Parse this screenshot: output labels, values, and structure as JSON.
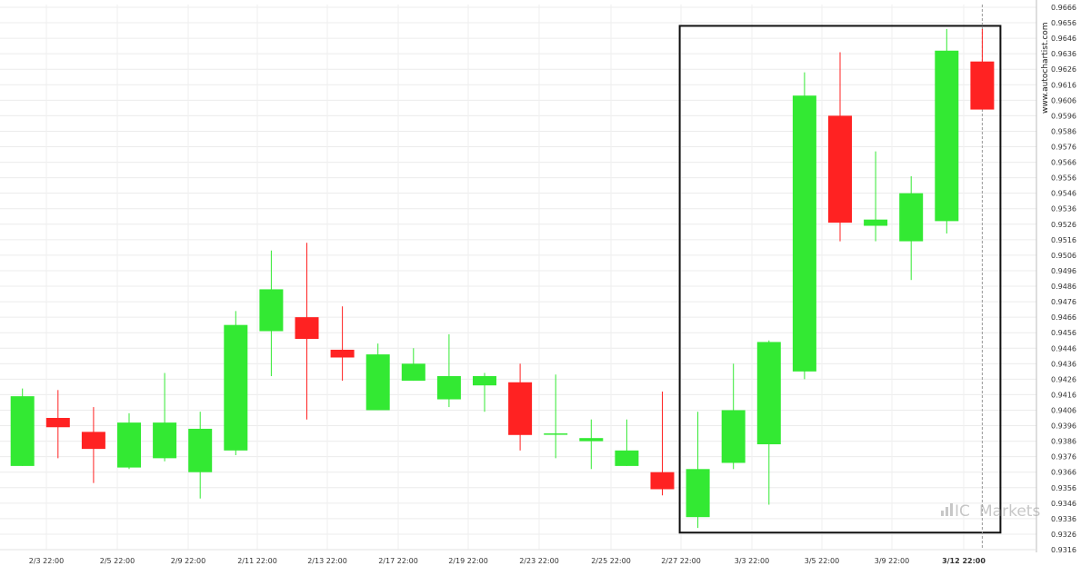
{
  "chart_data": {
    "type": "candlestick",
    "x_labels": [
      "2/3 22:00",
      "2/5 22:00",
      "2/9 22:00",
      "2/11 22:00",
      "2/13 22:00",
      "2/17 22:00",
      "2/19 22:00",
      "2/23 22:00",
      "2/25 22:00",
      "2/27 22:00",
      "3/3 22:00",
      "3/5 22:00",
      "3/9 22:00",
      "3/12 22:00"
    ],
    "highlighted_x_label": "3/12 22:00",
    "y_ticks": [
      "0.9666",
      "0.9656",
      "0.9646",
      "0.9636",
      "0.9626",
      "0.9616",
      "0.9606",
      "0.9596",
      "0.9586",
      "0.9576",
      "0.9566",
      "0.9556",
      "0.9546",
      "0.9536",
      "0.9526",
      "0.9516",
      "0.9506",
      "0.9496",
      "0.9486",
      "0.9476",
      "0.9466",
      "0.9456",
      "0.9446",
      "0.9436",
      "0.9426",
      "0.9416",
      "0.9406",
      "0.9396",
      "0.9386",
      "0.9376",
      "0.9366",
      "0.9356",
      "0.9346",
      "0.9336",
      "0.9326",
      "0.9316"
    ],
    "ylim": [
      0.9316,
      0.9666
    ],
    "grid": true,
    "candles": [
      {
        "o": 0.937,
        "h": 0.942,
        "l": 0.937,
        "c": 0.9415
      },
      {
        "o": 0.9401,
        "h": 0.9419,
        "l": 0.9375,
        "c": 0.9395
      },
      {
        "o": 0.9392,
        "h": 0.9408,
        "l": 0.9359,
        "c": 0.9381
      },
      {
        "o": 0.9369,
        "h": 0.9404,
        "l": 0.9368,
        "c": 0.9398
      },
      {
        "o": 0.9375,
        "h": 0.943,
        "l": 0.9373,
        "c": 0.9398
      },
      {
        "o": 0.9366,
        "h": 0.9405,
        "l": 0.9349,
        "c": 0.9394
      },
      {
        "o": 0.938,
        "h": 0.947,
        "l": 0.9377,
        "c": 0.9461
      },
      {
        "o": 0.9457,
        "h": 0.9509,
        "l": 0.9428,
        "c": 0.9484
      },
      {
        "o": 0.9466,
        "h": 0.9514,
        "l": 0.94,
        "c": 0.9452
      },
      {
        "o": 0.9445,
        "h": 0.9473,
        "l": 0.9425,
        "c": 0.944
      },
      {
        "o": 0.9406,
        "h": 0.9449,
        "l": 0.9406,
        "c": 0.9442
      },
      {
        "o": 0.9425,
        "h": 0.9446,
        "l": 0.9425,
        "c": 0.9436
      },
      {
        "o": 0.9413,
        "h": 0.9455,
        "l": 0.9408,
        "c": 0.9428
      },
      {
        "o": 0.9422,
        "h": 0.943,
        "l": 0.9405,
        "c": 0.9428
      },
      {
        "o": 0.9424,
        "h": 0.9436,
        "l": 0.938,
        "c": 0.939
      },
      {
        "o": 0.9391,
        "h": 0.9429,
        "l": 0.9375,
        "c": 0.9391
      },
      {
        "o": 0.9386,
        "h": 0.94,
        "l": 0.9368,
        "c": 0.9388
      },
      {
        "o": 0.937,
        "h": 0.94,
        "l": 0.937,
        "c": 0.938
      },
      {
        "o": 0.9366,
        "h": 0.9418,
        "l": 0.9351,
        "c": 0.9355
      },
      {
        "o": 0.9337,
        "h": 0.9405,
        "l": 0.933,
        "c": 0.9368
      },
      {
        "o": 0.9372,
        "h": 0.9436,
        "l": 0.9368,
        "c": 0.9406
      },
      {
        "o": 0.9384,
        "h": 0.9451,
        "l": 0.9345,
        "c": 0.945
      },
      {
        "o": 0.9431,
        "h": 0.9624,
        "l": 0.9426,
        "c": 0.9609
      },
      {
        "o": 0.9596,
        "h": 0.9637,
        "l": 0.9515,
        "c": 0.9527
      },
      {
        "o": 0.9525,
        "h": 0.9573,
        "l": 0.9515,
        "c": 0.9529
      },
      {
        "o": 0.9515,
        "h": 0.9557,
        "l": 0.949,
        "c": 0.9546
      },
      {
        "o": 0.9528,
        "h": 0.9652,
        "l": 0.952,
        "c": 0.9638
      },
      {
        "o": 0.9631,
        "h": 0.9652,
        "l": 0.96,
        "c": 0.96
      }
    ],
    "colors": {
      "up": "#33e933",
      "down": "#ff2222"
    },
    "highlight_box": {
      "start_index": 19,
      "end_index": 27,
      "y_top": 0.9654,
      "y_bottom": 0.9327
    }
  },
  "watermark": {
    "vertical": "www.autochartist.com",
    "brand_prefix": "IC",
    "brand_suffix": "Markets"
  }
}
